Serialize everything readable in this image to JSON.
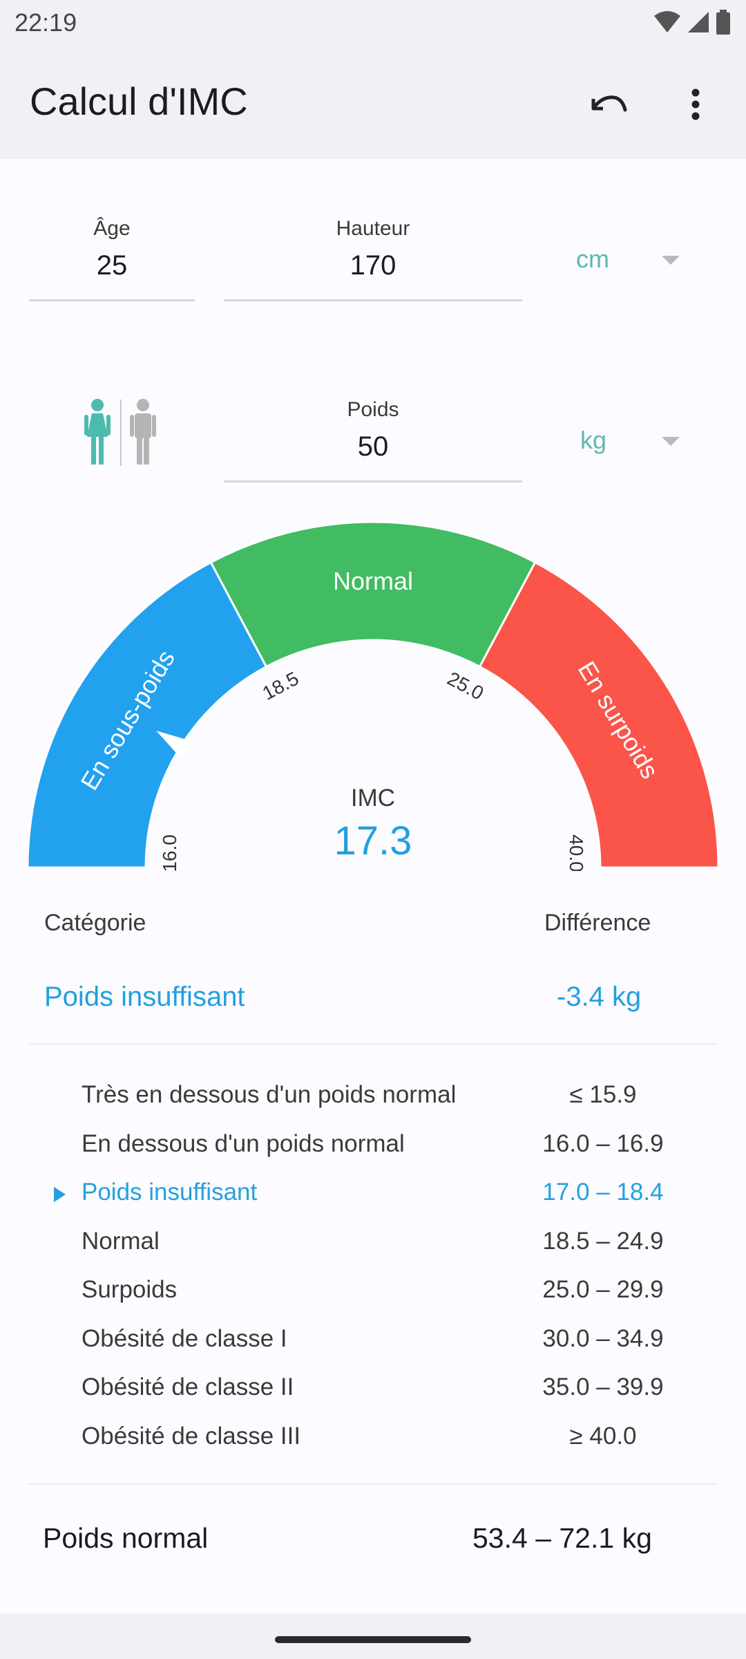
{
  "status_bar": {
    "time": "22:19"
  },
  "app_bar": {
    "title": "Calcul d'IMC",
    "undo_icon": "undo-icon",
    "menu_icon": "more-vert-icon"
  },
  "inputs": {
    "age": {
      "label": "Âge",
      "value": "25"
    },
    "height": {
      "label": "Hauteur",
      "value": "170",
      "unit": "cm"
    },
    "weight": {
      "label": "Poids",
      "value": "50",
      "unit": "kg"
    },
    "gender": {
      "selected": "female",
      "icons": [
        "female-icon",
        "male-icon"
      ]
    }
  },
  "gauge": {
    "segments": [
      {
        "label": "En sous-poids",
        "color": "#22a1ef",
        "from": 16.0,
        "to": 18.5
      },
      {
        "label": "Normal",
        "color": "#42bc62",
        "from": 18.5,
        "to": 25.0
      },
      {
        "label": "En surpoids",
        "color": "#fb5449",
        "from": 25.0,
        "to": 40.0
      }
    ],
    "tick_labels": [
      "16.0",
      "18.5",
      "25.0",
      "40.0"
    ],
    "label": "IMC",
    "value": "17.3",
    "bmi": 17.3
  },
  "result": {
    "category_header": "Catégorie",
    "difference_header": "Différence",
    "category": "Poids insuffisant",
    "difference": "-3.4 kg"
  },
  "table": [
    {
      "label": "Très en dessous d'un poids normal",
      "range": "≤ 15.9",
      "active": false
    },
    {
      "label": "En dessous d'un poids normal",
      "range": "16.0 – 16.9",
      "active": false
    },
    {
      "label": "Poids insuffisant",
      "range": "17.0 – 18.4",
      "active": true
    },
    {
      "label": "Normal",
      "range": "18.5 – 24.9",
      "active": false
    },
    {
      "label": "Surpoids",
      "range": "25.0 – 29.9",
      "active": false
    },
    {
      "label": "Obésité de classe I",
      "range": "30.0 – 34.9",
      "active": false
    },
    {
      "label": "Obésité de classe II",
      "range": "35.0 – 39.9",
      "active": false
    },
    {
      "label": "Obésité de classe III",
      "range": "≥ 40.0",
      "active": false
    }
  ],
  "normal_weight": {
    "label": "Poids normal",
    "value": "53.4 – 72.1 kg"
  },
  "colors": {
    "accent": "#24a0de",
    "unit": "#5fb8ad",
    "female": "#4dbaae",
    "male": "#b4b4b4"
  }
}
